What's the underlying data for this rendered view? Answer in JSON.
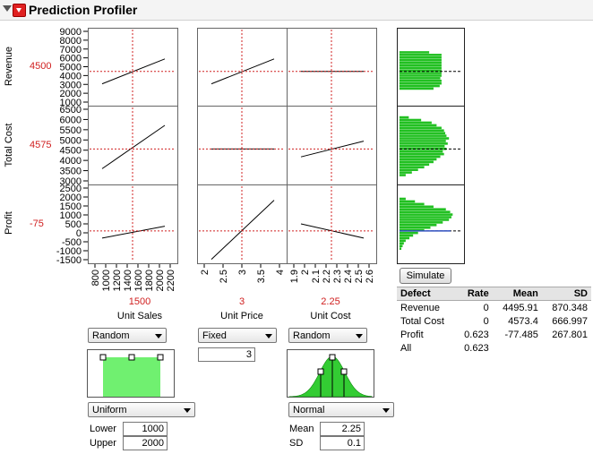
{
  "header": {
    "title": "Prediction Profiler"
  },
  "responses": [
    {
      "name": "Revenue",
      "value": "4500"
    },
    {
      "name": "Total Cost",
      "value": "4575"
    },
    {
      "name": "Profit",
      "value": "-75"
    }
  ],
  "ticks": {
    "revenue": [
      "9000",
      "8000",
      "7000",
      "6000",
      "5000",
      "4000",
      "3000",
      "2000",
      "1000"
    ],
    "total_cost": [
      "6500",
      "6000",
      "5500",
      "5000",
      "4500",
      "4000",
      "3500",
      "3000"
    ],
    "profit": [
      "2500",
      "2000",
      "1500",
      "1000",
      "500",
      "0",
      "-500",
      "-1000",
      "-1500"
    ],
    "unit_sales": [
      "800",
      "1000",
      "1200",
      "1400",
      "1600",
      "1800",
      "2000",
      "2200"
    ],
    "unit_price": [
      "2",
      "2.5",
      "3",
      "3.5",
      "4"
    ],
    "unit_cost": [
      "1.9",
      "2",
      "2.1",
      "2.2",
      "2.3",
      "2.4",
      "2.5",
      "2.6"
    ]
  },
  "factors": [
    {
      "name": "Unit Sales",
      "value": "1500",
      "mode": "Random",
      "dist": "Uniform",
      "param1_label": "Lower",
      "param1_value": "1000",
      "param2_label": "Upper",
      "param2_value": "2000"
    },
    {
      "name": "Unit Price",
      "value": "3",
      "mode": "Fixed",
      "fixed_value": "3"
    },
    {
      "name": "Unit Cost",
      "value": "2.25",
      "mode": "Random",
      "dist": "Normal",
      "param1_label": "Mean",
      "param1_value": "2.25",
      "param2_label": "SD",
      "param2_value": "0.1"
    }
  ],
  "simulate_label": "Simulate",
  "defect_table": {
    "headers": [
      "Defect",
      "Rate",
      "Mean",
      "SD"
    ],
    "rows": [
      [
        "Revenue",
        "0",
        "4495.91",
        "870.348"
      ],
      [
        "Total Cost",
        "0",
        "4573.4",
        "666.997"
      ],
      [
        "Profit",
        "0.623",
        "-77.485",
        "267.801"
      ],
      [
        "All",
        "0.623",
        "",
        ""
      ]
    ]
  },
  "colors": {
    "accent_red": "#d02020",
    "histogram_green": "#22c022",
    "dist_green": "#70f070"
  }
}
